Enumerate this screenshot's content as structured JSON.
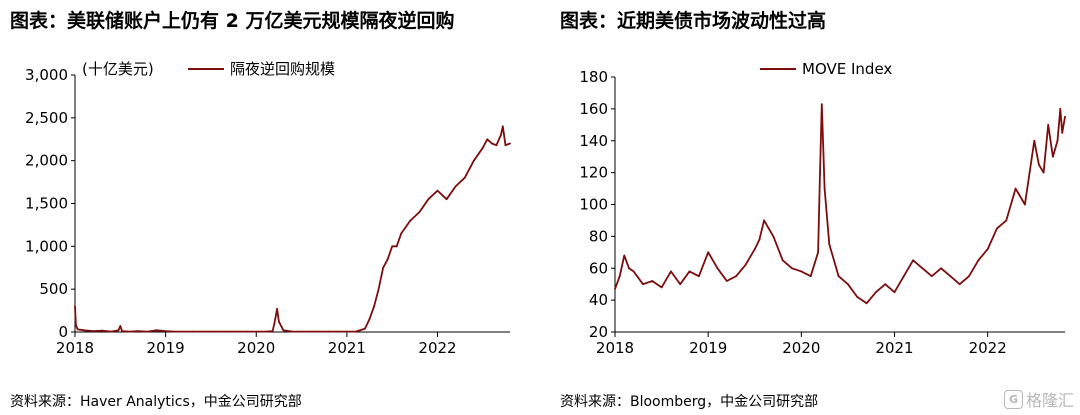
{
  "left": {
    "title": "图表：美联储账户上仍有 2 万亿美元规模隔夜逆回购",
    "source": "资料来源：Haver Analytics，中金公司研究部"
  },
  "right": {
    "title": "图表：近期美债市场波动性过高",
    "source": "资料来源：Bloomberg，中金公司研究部"
  },
  "watermark": {
    "text": "格隆汇",
    "logo": "G"
  },
  "colors": {
    "series": "#7b0d0d",
    "axis": "#000000"
  },
  "chart_data": [
    {
      "type": "line",
      "title": "",
      "unit_label": "(十亿美元)",
      "xlabel": "",
      "ylabel": "",
      "xlim": [
        2018.0,
        2022.8
      ],
      "ylim": [
        0,
        3000
      ],
      "xticks": [
        2018,
        2019,
        2020,
        2021,
        2022
      ],
      "xtick_labels": [
        "2018",
        "2019",
        "2020",
        "2021",
        "2022"
      ],
      "yticks": [
        0,
        500,
        1000,
        1500,
        2000,
        2500,
        3000
      ],
      "ytick_labels": [
        "0",
        "500",
        "1,000",
        "1,500",
        "2,000",
        "2,500",
        "3,000"
      ],
      "grid": false,
      "legend": "top-left",
      "series": [
        {
          "name": "隔夜逆回购规模",
          "color": "#7b0d0d",
          "x": [
            2018.0,
            2018.01,
            2018.03,
            2018.1,
            2018.2,
            2018.3,
            2018.4,
            2018.48,
            2018.5,
            2018.52,
            2018.6,
            2018.7,
            2018.8,
            2018.9,
            2019.0,
            2019.1,
            2019.2,
            2019.3,
            2019.4,
            2019.5,
            2019.6,
            2019.7,
            2019.8,
            2019.9,
            2020.0,
            2020.1,
            2020.18,
            2020.2,
            2020.23,
            2020.25,
            2020.3,
            2020.4,
            2020.5,
            2020.6,
            2020.7,
            2020.8,
            2020.9,
            2021.0,
            2021.1,
            2021.2,
            2021.25,
            2021.3,
            2021.35,
            2021.4,
            2021.45,
            2021.5,
            2021.55,
            2021.6,
            2021.7,
            2021.8,
            2021.9,
            2022.0,
            2022.1,
            2022.2,
            2022.3,
            2022.4,
            2022.5,
            2022.55,
            2022.6,
            2022.65,
            2022.7,
            2022.72,
            2022.75,
            2022.8
          ],
          "values": [
            300,
            80,
            30,
            20,
            10,
            15,
            5,
            20,
            70,
            10,
            5,
            10,
            5,
            20,
            10,
            5,
            5,
            5,
            5,
            5,
            5,
            5,
            5,
            5,
            5,
            5,
            10,
            100,
            270,
            120,
            20,
            5,
            5,
            5,
            5,
            5,
            5,
            5,
            5,
            40,
            150,
            300,
            500,
            750,
            850,
            1000,
            1000,
            1150,
            1300,
            1400,
            1550,
            1650,
            1550,
            1700,
            1800,
            2000,
            2150,
            2250,
            2200,
            2180,
            2300,
            2400,
            2180,
            2200
          ]
        }
      ]
    },
    {
      "type": "line",
      "title": "",
      "xlabel": "",
      "ylabel": "",
      "xlim": [
        2018.0,
        2022.83
      ],
      "ylim": [
        20,
        180
      ],
      "xticks": [
        2018,
        2019,
        2020,
        2021,
        2022
      ],
      "xtick_labels": [
        "2018",
        "2019",
        "2020",
        "2021",
        "2022"
      ],
      "yticks": [
        20,
        40,
        60,
        80,
        100,
        120,
        140,
        160,
        180
      ],
      "ytick_labels": [
        "20",
        "40",
        "60",
        "80",
        "100",
        "120",
        "140",
        "160",
        "180"
      ],
      "grid": false,
      "legend": "top-center",
      "series": [
        {
          "name": "MOVE Index",
          "color": "#7b0d0d",
          "x": [
            2018.0,
            2018.05,
            2018.1,
            2018.15,
            2018.2,
            2018.3,
            2018.4,
            2018.5,
            2018.6,
            2018.7,
            2018.8,
            2018.9,
            2019.0,
            2019.1,
            2019.2,
            2019.3,
            2019.4,
            2019.5,
            2019.55,
            2019.6,
            2019.65,
            2019.7,
            2019.8,
            2019.9,
            2020.0,
            2020.1,
            2020.18,
            2020.2,
            2020.22,
            2020.25,
            2020.3,
            2020.4,
            2020.5,
            2020.6,
            2020.7,
            2020.8,
            2020.9,
            2021.0,
            2021.1,
            2021.2,
            2021.3,
            2021.4,
            2021.5,
            2021.6,
            2021.7,
            2021.8,
            2021.9,
            2022.0,
            2022.1,
            2022.2,
            2022.3,
            2022.4,
            2022.45,
            2022.5,
            2022.55,
            2022.6,
            2022.65,
            2022.7,
            2022.75,
            2022.78,
            2022.8,
            2022.83
          ],
          "values": [
            47,
            55,
            68,
            60,
            58,
            50,
            52,
            48,
            58,
            50,
            58,
            55,
            70,
            60,
            52,
            55,
            62,
            72,
            78,
            90,
            85,
            80,
            65,
            60,
            58,
            55,
            70,
            120,
            163,
            110,
            75,
            55,
            50,
            42,
            38,
            45,
            50,
            45,
            55,
            65,
            60,
            55,
            60,
            55,
            50,
            55,
            65,
            72,
            85,
            90,
            110,
            100,
            120,
            140,
            125,
            120,
            150,
            130,
            140,
            160,
            145,
            155
          ]
        }
      ]
    }
  ]
}
